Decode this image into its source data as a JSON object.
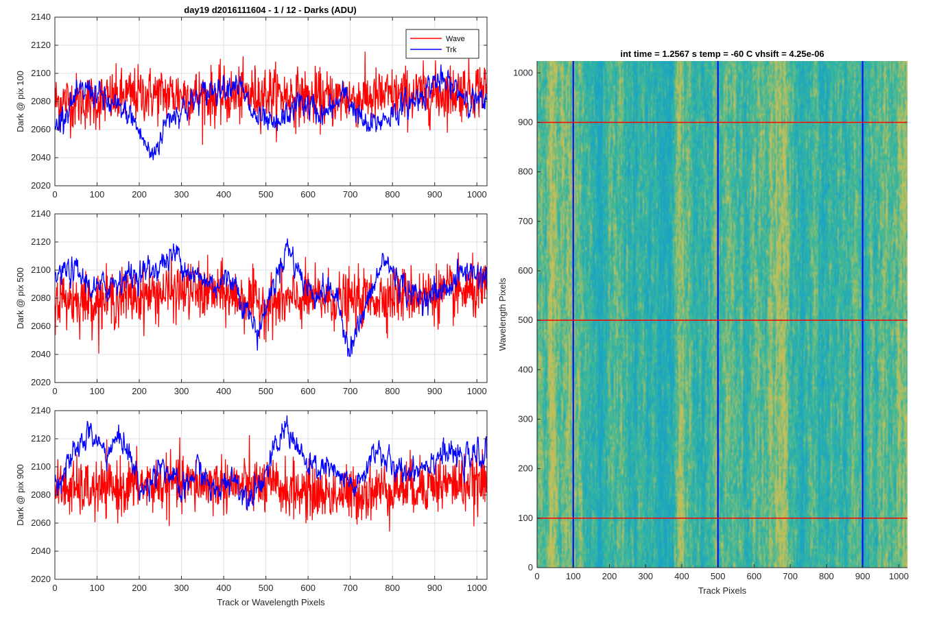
{
  "figure": {
    "title": "day19 d2016111604 - 1 / 12 - Darks (ADU)",
    "colors": {
      "wave": "#ff0000",
      "trk": "#0000ff",
      "grid": "#e0e0e0",
      "axis": "#262626"
    }
  },
  "chart_data": [
    {
      "type": "line",
      "ylabel": "Dark @ pix 100",
      "xlabel": "",
      "xlim": [
        0,
        1024
      ],
      "ylim": [
        2020,
        2140
      ],
      "xticks": [
        0,
        100,
        200,
        300,
        400,
        500,
        600,
        700,
        800,
        900,
        1000
      ],
      "yticks": [
        2020,
        2040,
        2060,
        2080,
        2100,
        2120,
        2140
      ],
      "grid": true,
      "legend": {
        "placement": "top-right",
        "entries": [
          "Wave",
          "Trk"
        ]
      },
      "series": [
        {
          "name": "Wave",
          "color": "#ff0000",
          "noise": 10,
          "x": [
            0,
            100,
            200,
            300,
            400,
            500,
            600,
            700,
            800,
            900,
            1024
          ],
          "y": [
            2080,
            2080,
            2085,
            2085,
            2083,
            2086,
            2082,
            2082,
            2084,
            2085,
            2090
          ]
        },
        {
          "name": "Trk",
          "color": "#0000ff",
          "noise": 4,
          "x": [
            0,
            20,
            80,
            140,
            180,
            230,
            270,
            330,
            380,
            430,
            470,
            520,
            580,
            640,
            690,
            740,
            790,
            850,
            900,
            940,
            1000,
            1024
          ],
          "y": [
            2060,
            2072,
            2090,
            2075,
            2070,
            2040,
            2070,
            2080,
            2090,
            2095,
            2070,
            2060,
            2080,
            2070,
            2085,
            2060,
            2070,
            2080,
            2095,
            2090,
            2080,
            2075
          ]
        }
      ]
    },
    {
      "type": "line",
      "ylabel": "Dark @ pix 500",
      "xlabel": "",
      "xlim": [
        0,
        1024
      ],
      "ylim": [
        2020,
        2140
      ],
      "xticks": [
        0,
        100,
        200,
        300,
        400,
        500,
        600,
        700,
        800,
        900,
        1000
      ],
      "yticks": [
        2020,
        2040,
        2060,
        2080,
        2100,
        2120,
        2140
      ],
      "grid": true,
      "series": [
        {
          "name": "Wave",
          "color": "#ff0000",
          "noise": 10,
          "x": [
            0,
            100,
            200,
            300,
            400,
            500,
            600,
            700,
            800,
            900,
            1024
          ],
          "y": [
            2080,
            2078,
            2082,
            2085,
            2083,
            2075,
            2080,
            2078,
            2082,
            2083,
            2085
          ]
        },
        {
          "name": "Trk",
          "color": "#0000ff",
          "noise": 4,
          "x": [
            0,
            40,
            100,
            160,
            230,
            290,
            330,
            380,
            420,
            480,
            550,
            600,
            660,
            700,
            740,
            780,
            820,
            860,
            920,
            970,
            1024
          ],
          "y": [
            2095,
            2100,
            2085,
            2095,
            2100,
            2112,
            2095,
            2090,
            2095,
            2055,
            2118,
            2085,
            2085,
            2045,
            2075,
            2108,
            2090,
            2080,
            2085,
            2100,
            2095
          ]
        }
      ]
    },
    {
      "type": "line",
      "ylabel": "Dark @ pix 900",
      "xlabel": "Track or Wavelength Pixels",
      "xlim": [
        0,
        1024
      ],
      "ylim": [
        2020,
        2140
      ],
      "xticks": [
        0,
        100,
        200,
        300,
        400,
        500,
        600,
        700,
        800,
        900,
        1000
      ],
      "yticks": [
        2020,
        2040,
        2060,
        2080,
        2100,
        2120,
        2140
      ],
      "grid": true,
      "series": [
        {
          "name": "Wave",
          "color": "#ff0000",
          "noise": 10,
          "x": [
            0,
            100,
            200,
            300,
            400,
            500,
            600,
            700,
            800,
            900,
            1024
          ],
          "y": [
            2085,
            2083,
            2087,
            2088,
            2088,
            2086,
            2082,
            2080,
            2085,
            2088,
            2088
          ]
        },
        {
          "name": "Trk",
          "color": "#0000ff",
          "noise": 4,
          "x": [
            0,
            30,
            80,
            120,
            160,
            210,
            250,
            300,
            340,
            380,
            420,
            450,
            490,
            550,
            600,
            640,
            680,
            720,
            760,
            810,
            860,
            920,
            970,
            1024
          ],
          "y": [
            2090,
            2100,
            2125,
            2110,
            2122,
            2080,
            2105,
            2080,
            2100,
            2080,
            2095,
            2080,
            2090,
            2130,
            2098,
            2100,
            2090,
            2085,
            2115,
            2095,
            2100,
            2110,
            2105,
            2110
          ]
        }
      ]
    },
    {
      "type": "heatmap",
      "title": "int time = 1.2567 s    temp = -60 C    vhsift = 4.25e-06",
      "xlabel": "Track Pixels",
      "ylabel": "Wavelength Pixels",
      "xlim": [
        0,
        1024
      ],
      "ylim": [
        0,
        1024
      ],
      "xticks": [
        0,
        100,
        200,
        300,
        400,
        500,
        600,
        700,
        800,
        900,
        1000
      ],
      "yticks": [
        0,
        100,
        200,
        300,
        400,
        500,
        600,
        700,
        800,
        900,
        1000
      ],
      "colormap": {
        "low": "#1aa3c4",
        "mid": "#3bb89a",
        "high": "#c2bf5a"
      },
      "vertical_markers": {
        "x": [
          100,
          500,
          900
        ],
        "color": "#0000ff"
      },
      "horizontal_markers": {
        "y": [
          100,
          500,
          900
        ],
        "color": "#ff0000"
      }
    }
  ]
}
